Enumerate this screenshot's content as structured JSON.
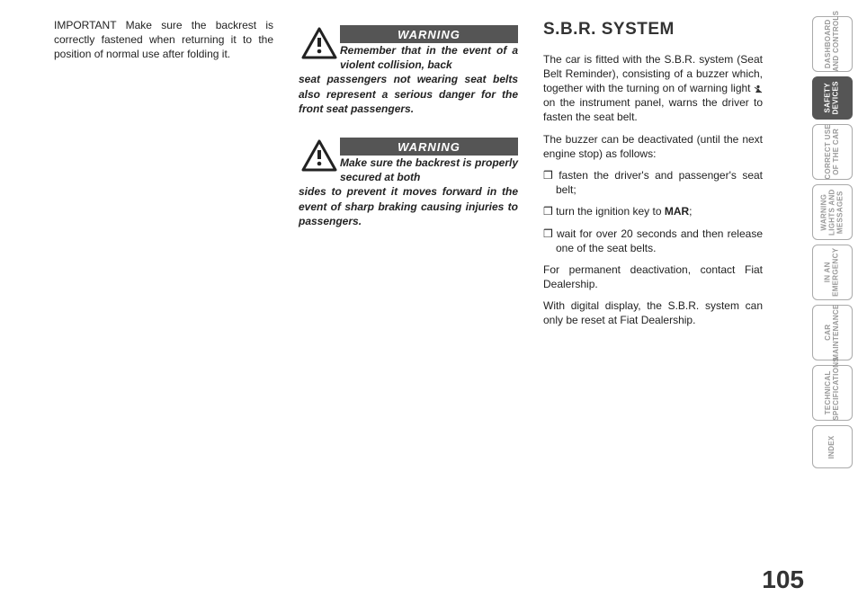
{
  "col1": {
    "important": "IMPORTANT Make sure the backrest is correctly fastened when returning it to the position of normal use after folding it."
  },
  "warnings": {
    "title": "WARNING",
    "w1_first": "Remember that in the event of a violent collision, back",
    "w1_rest": "seat passengers not wearing seat belts also represent a serious danger for the front seat passengers.",
    "w2_first": "Make sure the backrest is properly secured at both",
    "w2_rest": "sides to prevent it moves forward in the event of sharp braking causing injuries to passengers."
  },
  "sbr": {
    "title": "S.B.R. SYSTEM",
    "p1a": "The car is fitted with the S.B.R. system (Seat Belt Reminder), consisting of a buzzer which, together with the turning on of warning light ",
    "p1b": " on the instrument panel, warns the driver to fasten the seat belt.",
    "p2": "The buzzer can be deactivated (until the next engine stop) as follows:",
    "b1": "fasten the driver's and passenger's seat belt;",
    "b2a": "turn the ignition key to ",
    "b2b": "MAR",
    "b2c": ";",
    "b3": "wait for over 20 seconds and then release one of the seat belts.",
    "p3": "For permanent deactivation, contact Fiat Dealership.",
    "p4": "With digital display, the S.B.R. system can only be reset at Fiat Dealership."
  },
  "tabs": {
    "t1": "DASHBOARD\nAND CONTROLS",
    "t2": "SAFETY\nDEVICES",
    "t3": "CORRECT USE\nOF THE CAR",
    "t4": "WARNING\nLIGHTS AND\nMESSAGES",
    "t5": "IN AN\nEMERGENCY",
    "t6": "CAR\nMAINTENANCE",
    "t7": "TECHNICAL\nSPECIFICATIONS",
    "t8": "INDEX"
  },
  "page_number": "105",
  "colors": {
    "warning_bg": "#555555",
    "tab_active_bg": "#555555",
    "tab_inactive_text": "#999999",
    "text": "#222222"
  }
}
